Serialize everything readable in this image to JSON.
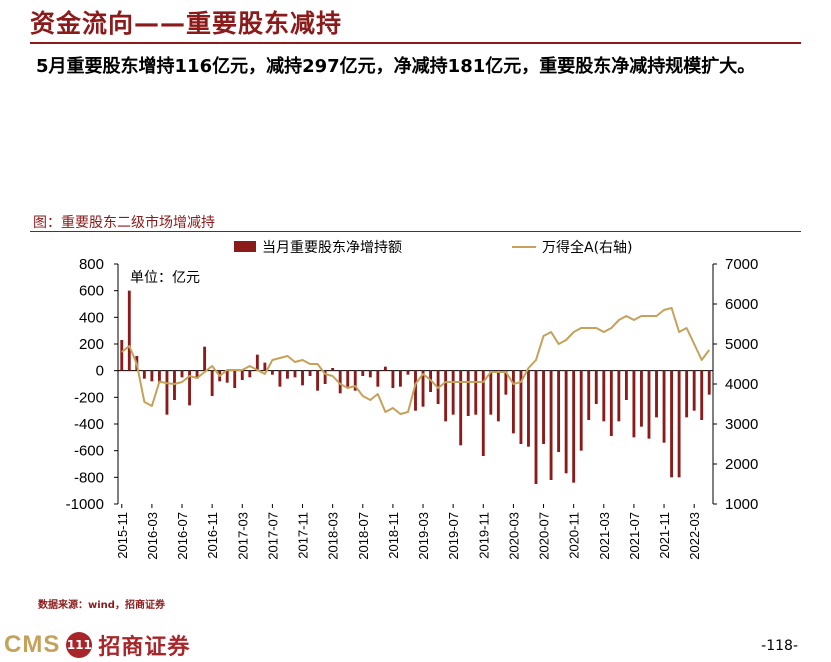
{
  "header": {
    "title": "资金流向——重要股东减持",
    "summary": "5月重要股东增持116亿元，减持297亿元，净减持181亿元，重要股东净减持规模扩大。"
  },
  "figure": {
    "caption": "图：重要股东二级市场增减持",
    "source": "数据来源：wind，招商证券"
  },
  "footer": {
    "brand_en": "CMS",
    "brand_cn": "招商证券",
    "logo_mark": "111",
    "page_number": "-118-"
  },
  "colors": {
    "bar": "#8b1a1a",
    "line": "#c4a25a",
    "accent": "#8b1a1a"
  },
  "chart_data": {
    "type": "bar",
    "unit_label": "单位：亿元",
    "legend_position": "top",
    "grid": false,
    "x": [
      "2015-11",
      "2015-12",
      "2016-01",
      "2016-02",
      "2016-03",
      "2016-04",
      "2016-05",
      "2016-06",
      "2016-07",
      "2016-08",
      "2016-09",
      "2016-10",
      "2016-11",
      "2016-12",
      "2017-01",
      "2017-02",
      "2017-03",
      "2017-04",
      "2017-05",
      "2017-06",
      "2017-07",
      "2017-08",
      "2017-09",
      "2017-10",
      "2017-11",
      "2017-12",
      "2018-01",
      "2018-02",
      "2018-03",
      "2018-04",
      "2018-05",
      "2018-06",
      "2018-07",
      "2018-08",
      "2018-09",
      "2018-10",
      "2018-11",
      "2018-12",
      "2019-01",
      "2019-02",
      "2019-03",
      "2019-04",
      "2019-05",
      "2019-06",
      "2019-07",
      "2019-08",
      "2019-09",
      "2019-10",
      "2019-11",
      "2019-12",
      "2020-01",
      "2020-02",
      "2020-03",
      "2020-04",
      "2020-05",
      "2020-06",
      "2020-07",
      "2020-08",
      "2020-09",
      "2020-10",
      "2020-11",
      "2020-12",
      "2021-01",
      "2021-02",
      "2021-03",
      "2021-04",
      "2021-05",
      "2021-06",
      "2021-07",
      "2021-08",
      "2021-09",
      "2021-10",
      "2021-11",
      "2021-12",
      "2022-01",
      "2022-02",
      "2022-03",
      "2022-04",
      "2022-05"
    ],
    "x_tick_labels": [
      "2015-11",
      "2016-03",
      "2016-07",
      "2016-11",
      "2017-03",
      "2017-07",
      "2017-11",
      "2018-03",
      "2018-07",
      "2018-11",
      "2019-03",
      "2019-07",
      "2019-11",
      "2020-03",
      "2020-07",
      "2020-11",
      "2021-03",
      "2021-07",
      "2021-11",
      "2022-03"
    ],
    "series": [
      {
        "name": "当月重要股东净增持额",
        "axis": "left",
        "type": "bar",
        "values": [
          230,
          600,
          110,
          -60,
          -80,
          -90,
          -330,
          -220,
          -50,
          -260,
          -60,
          180,
          -190,
          -80,
          -90,
          -130,
          -70,
          -50,
          120,
          60,
          -30,
          -120,
          -60,
          -50,
          -110,
          -40,
          -150,
          -100,
          20,
          -170,
          -120,
          -150,
          -40,
          -50,
          -120,
          30,
          -130,
          -120,
          -30,
          -300,
          -270,
          -160,
          -250,
          -380,
          -330,
          -560,
          -340,
          -330,
          -640,
          -330,
          -380,
          -180,
          -470,
          -550,
          -570,
          -850,
          -550,
          -820,
          -610,
          -770,
          -840,
          -600,
          -370,
          -250,
          -380,
          -490,
          -380,
          -220,
          -500,
          -420,
          -510,
          -350,
          -540,
          -800,
          -800,
          -350,
          -300,
          -370,
          -180
        ]
      },
      {
        "name": "万得全A(右轴)",
        "axis": "right",
        "type": "line",
        "values": [
          4800,
          4950,
          4500,
          3550,
          3450,
          4060,
          4020,
          4000,
          4050,
          4200,
          4150,
          4300,
          4450,
          4200,
          4350,
          4350,
          4350,
          4450,
          4350,
          4250,
          4600,
          4650,
          4700,
          4550,
          4600,
          4500,
          4500,
          4250,
          4200,
          4000,
          3900,
          3950,
          3700,
          3600,
          3750,
          3300,
          3400,
          3250,
          3300,
          4000,
          4250,
          4100,
          3900,
          4050,
          4050,
          4050,
          4050,
          4050,
          4050,
          4300,
          4300,
          4300,
          4000,
          4050,
          4400,
          4600,
          5200,
          5300,
          5000,
          5100,
          5300,
          5400,
          5400,
          5400,
          5300,
          5400,
          5600,
          5700,
          5600,
          5700,
          5700,
          5700,
          5850,
          5900,
          5300,
          5400,
          5000,
          4600,
          4850
        ]
      }
    ],
    "y_left": {
      "ticks": [
        800,
        600,
        400,
        200,
        0,
        -200,
        -400,
        -600,
        -800,
        -1000
      ],
      "range": [
        -1000,
        800
      ]
    },
    "y_right": {
      "ticks": [
        7000,
        6000,
        5000,
        4000,
        3000,
        2000,
        1000
      ],
      "range": [
        1000,
        7000
      ]
    }
  }
}
